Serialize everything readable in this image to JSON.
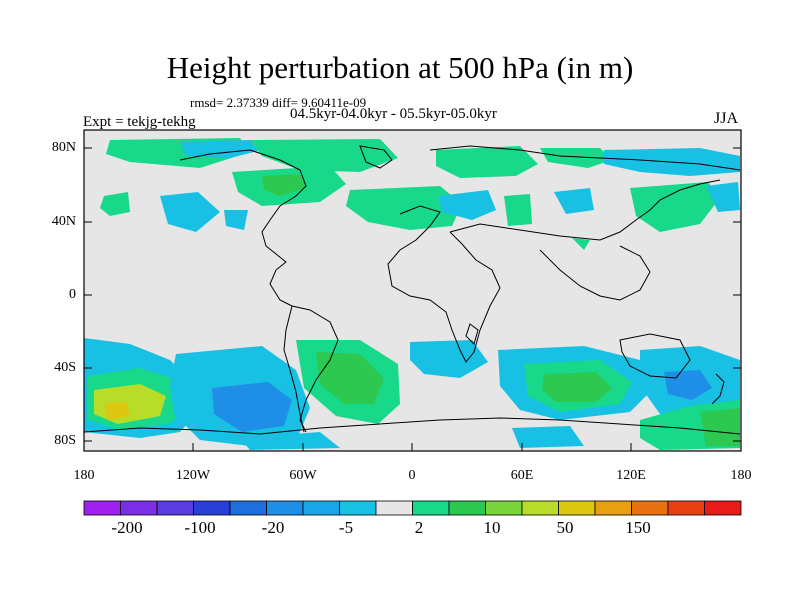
{
  "title": "Height perturbation at 500 hPa (in m)",
  "stats": "rmsd= 2.37339 diff= 9.60411e-09",
  "periods": "04.5kyr-04.0kyr - 05.5kyr-05.0kyr",
  "experiment": "Expt = tekjg-tekhg",
  "season": "JJA",
  "y_ticks": [
    "80N",
    "40N",
    "0",
    "40S",
    "80S"
  ],
  "x_ticks": [
    "180",
    "120W",
    "60W",
    "0",
    "60E",
    "120E",
    "180"
  ],
  "colorbar": {
    "labels": [
      "-200",
      "-100",
      "-20",
      "-5",
      "2",
      "10",
      "50",
      "150"
    ],
    "colors": [
      "#a020f0",
      "#7a2ee8",
      "#5a3ce0",
      "#2a3ed8",
      "#1e6ee0",
      "#1e8ee6",
      "#18a6e8",
      "#18c0e4",
      "#e6e6e6",
      "#18d88a",
      "#2cc850",
      "#7ad43c",
      "#b8dc28",
      "#dcc810",
      "#e8a010",
      "#e87010",
      "#e84010",
      "#e81a1a"
    ]
  },
  "colors": {
    "land_fill": "#e6e6e6",
    "coast": "#000000"
  }
}
